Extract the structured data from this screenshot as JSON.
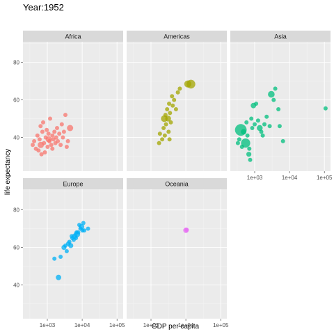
{
  "chart_data": {
    "type": "scatter",
    "title": "Year:1952",
    "xlabel": "GDP per capita",
    "ylabel": "life expectancy",
    "x_scale": "log10",
    "xlim": [
      200,
      150000
    ],
    "ylim": [
      22,
      91
    ],
    "x_ticks": [
      {
        "value": 1000,
        "label": "1e+03"
      },
      {
        "value": 10000,
        "label": "1e+04"
      },
      {
        "value": 100000,
        "label": "1e+05"
      }
    ],
    "y_ticks": [
      {
        "value": 40,
        "label": "40"
      },
      {
        "value": 60,
        "label": "60"
      },
      {
        "value": 80,
        "label": "80"
      }
    ],
    "grid": true,
    "legend": "none",
    "facets": [
      {
        "name": "Africa",
        "color": "#F8766D",
        "points": [
          {
            "x": 380,
            "y": 36,
            "s": 1
          },
          {
            "x": 420,
            "y": 38,
            "s": 1
          },
          {
            "x": 470,
            "y": 34,
            "s": 1
          },
          {
            "x": 520,
            "y": 41,
            "s": 1
          },
          {
            "x": 560,
            "y": 33,
            "s": 1
          },
          {
            "x": 600,
            "y": 39,
            "s": 1
          },
          {
            "x": 640,
            "y": 46,
            "s": 1
          },
          {
            "x": 680,
            "y": 31,
            "s": 1
          },
          {
            "x": 720,
            "y": 43,
            "s": 1
          },
          {
            "x": 760,
            "y": 48,
            "s": 1
          },
          {
            "x": 800,
            "y": 37,
            "s": 1
          },
          {
            "x": 850,
            "y": 32,
            "s": 1
          },
          {
            "x": 900,
            "y": 40,
            "s": 1
          },
          {
            "x": 960,
            "y": 44,
            "s": 1
          },
          {
            "x": 1020,
            "y": 35,
            "s": 1
          },
          {
            "x": 1080,
            "y": 42,
            "s": 1
          },
          {
            "x": 1150,
            "y": 38,
            "s": 1
          },
          {
            "x": 1200,
            "y": 50,
            "s": 1
          },
          {
            "x": 1300,
            "y": 36,
            "s": 1
          },
          {
            "x": 1400,
            "y": 41,
            "s": 1
          },
          {
            "x": 1500,
            "y": 39,
            "s": 1
          },
          {
            "x": 1600,
            "y": 43,
            "s": 1
          },
          {
            "x": 1700,
            "y": 37,
            "s": 1
          },
          {
            "x": 1800,
            "y": 40,
            "s": 1
          },
          {
            "x": 1900,
            "y": 45,
            "s": 1
          },
          {
            "x": 2000,
            "y": 38,
            "s": 1
          },
          {
            "x": 2200,
            "y": 42,
            "s": 1
          },
          {
            "x": 2400,
            "y": 36,
            "s": 1
          },
          {
            "x": 2600,
            "y": 47,
            "s": 1
          },
          {
            "x": 2800,
            "y": 40,
            "s": 1
          },
          {
            "x": 3000,
            "y": 43,
            "s": 1
          },
          {
            "x": 3300,
            "y": 52,
            "s": 1
          },
          {
            "x": 3600,
            "y": 35,
            "s": 1
          },
          {
            "x": 3900,
            "y": 38,
            "s": 1
          },
          {
            "x": 4500,
            "y": 45,
            "s": 1.5
          },
          {
            "x": 650,
            "y": 36,
            "s": 1.5
          },
          {
            "x": 1100,
            "y": 39,
            "s": 1.5
          },
          {
            "x": 1400,
            "y": 34,
            "s": 1
          }
        ]
      },
      {
        "name": "Americas",
        "color": "#A3A500",
        "points": [
          {
            "x": 1700,
            "y": 37,
            "s": 1
          },
          {
            "x": 1800,
            "y": 42,
            "s": 1
          },
          {
            "x": 2100,
            "y": 39,
            "s": 1
          },
          {
            "x": 2300,
            "y": 45,
            "s": 1
          },
          {
            "x": 2400,
            "y": 50,
            "s": 1.6
          },
          {
            "x": 2500,
            "y": 41,
            "s": 1
          },
          {
            "x": 2700,
            "y": 47,
            "s": 1
          },
          {
            "x": 2900,
            "y": 55,
            "s": 1
          },
          {
            "x": 3100,
            "y": 50,
            "s": 1.4
          },
          {
            "x": 3200,
            "y": 43,
            "s": 1
          },
          {
            "x": 3300,
            "y": 58,
            "s": 1
          },
          {
            "x": 3500,
            "y": 53,
            "s": 1
          },
          {
            "x": 3700,
            "y": 48,
            "s": 1
          },
          {
            "x": 4000,
            "y": 62,
            "s": 1
          },
          {
            "x": 4200,
            "y": 57,
            "s": 1
          },
          {
            "x": 4600,
            "y": 60,
            "s": 1
          },
          {
            "x": 5200,
            "y": 55,
            "s": 1
          },
          {
            "x": 5900,
            "y": 64,
            "s": 1
          },
          {
            "x": 6700,
            "y": 66,
            "s": 1
          },
          {
            "x": 3400,
            "y": 39,
            "s": 1
          },
          {
            "x": 2600,
            "y": 52,
            "s": 1
          },
          {
            "x": 11400,
            "y": 68.5,
            "s": 1.7
          },
          {
            "x": 13990,
            "y": 68.4,
            "s": 2.1
          }
        ]
      },
      {
        "name": "Asia",
        "color": "#00BF7D",
        "points": [
          {
            "x": 400,
            "y": 44,
            "s": 2.8
          },
          {
            "x": 550,
            "y": 37,
            "s": 2.2
          },
          {
            "x": 330,
            "y": 37,
            "s": 1
          },
          {
            "x": 360,
            "y": 39,
            "s": 1
          },
          {
            "x": 430,
            "y": 35,
            "s": 1
          },
          {
            "x": 480,
            "y": 43,
            "s": 1.3
          },
          {
            "x": 580,
            "y": 48,
            "s": 1
          },
          {
            "x": 620,
            "y": 41,
            "s": 1
          },
          {
            "x": 680,
            "y": 31,
            "s": 1.2
          },
          {
            "x": 700,
            "y": 34,
            "s": 1
          },
          {
            "x": 740,
            "y": 28,
            "s": 1
          },
          {
            "x": 800,
            "y": 50,
            "s": 1
          },
          {
            "x": 850,
            "y": 45,
            "s": 1
          },
          {
            "x": 920,
            "y": 57,
            "s": 1.3
          },
          {
            "x": 1000,
            "y": 47,
            "s": 1
          },
          {
            "x": 1100,
            "y": 58,
            "s": 1
          },
          {
            "x": 1250,
            "y": 49,
            "s": 1
          },
          {
            "x": 1400,
            "y": 45,
            "s": 1.4
          },
          {
            "x": 1550,
            "y": 43,
            "s": 1
          },
          {
            "x": 1700,
            "y": 41,
            "s": 1
          },
          {
            "x": 1900,
            "y": 47,
            "s": 1
          },
          {
            "x": 2200,
            "y": 51,
            "s": 1
          },
          {
            "x": 2700,
            "y": 46,
            "s": 1
          },
          {
            "x": 3000,
            "y": 63,
            "s": 1.6
          },
          {
            "x": 3500,
            "y": 60,
            "s": 1
          },
          {
            "x": 3900,
            "y": 66,
            "s": 1
          },
          {
            "x": 4800,
            "y": 55,
            "s": 1
          },
          {
            "x": 5200,
            "y": 46,
            "s": 1
          },
          {
            "x": 6500,
            "y": 38,
            "s": 1
          },
          {
            "x": 108382,
            "y": 55.5,
            "s": 1
          }
        ]
      },
      {
        "name": "Europe",
        "color": "#00B0F6",
        "points": [
          {
            "x": 1600,
            "y": 54,
            "s": 1
          },
          {
            "x": 2100,
            "y": 44,
            "s": 1.3
          },
          {
            "x": 2400,
            "y": 55,
            "s": 1
          },
          {
            "x": 3000,
            "y": 60,
            "s": 1.2
          },
          {
            "x": 3300,
            "y": 61,
            "s": 1
          },
          {
            "x": 3600,
            "y": 58,
            "s": 1
          },
          {
            "x": 4000,
            "y": 62,
            "s": 1.1
          },
          {
            "x": 4300,
            "y": 63,
            "s": 1
          },
          {
            "x": 4700,
            "y": 61,
            "s": 1.2
          },
          {
            "x": 5200,
            "y": 65,
            "s": 1
          },
          {
            "x": 5700,
            "y": 64,
            "s": 1
          },
          {
            "x": 6100,
            "y": 66,
            "s": 1.3
          },
          {
            "x": 6600,
            "y": 65,
            "s": 1
          },
          {
            "x": 7100,
            "y": 67,
            "s": 1.5
          },
          {
            "x": 7700,
            "y": 68,
            "s": 1
          },
          {
            "x": 8300,
            "y": 72,
            "s": 1
          },
          {
            "x": 8900,
            "y": 70,
            "s": 1
          },
          {
            "x": 9600,
            "y": 71,
            "s": 1.3
          },
          {
            "x": 10200,
            "y": 69,
            "s": 1
          },
          {
            "x": 10800,
            "y": 73,
            "s": 1
          },
          {
            "x": 11500,
            "y": 69,
            "s": 1
          },
          {
            "x": 14700,
            "y": 70,
            "s": 1
          },
          {
            "x": 5000,
            "y": 66,
            "s": 1
          },
          {
            "x": 6900,
            "y": 68,
            "s": 1
          }
        ]
      },
      {
        "name": "Oceania",
        "color": "#E76BF3",
        "points": [
          {
            "x": 10040,
            "y": 69.1,
            "s": 1.3
          },
          {
            "x": 10557,
            "y": 69.4,
            "s": 1
          }
        ]
      }
    ]
  }
}
